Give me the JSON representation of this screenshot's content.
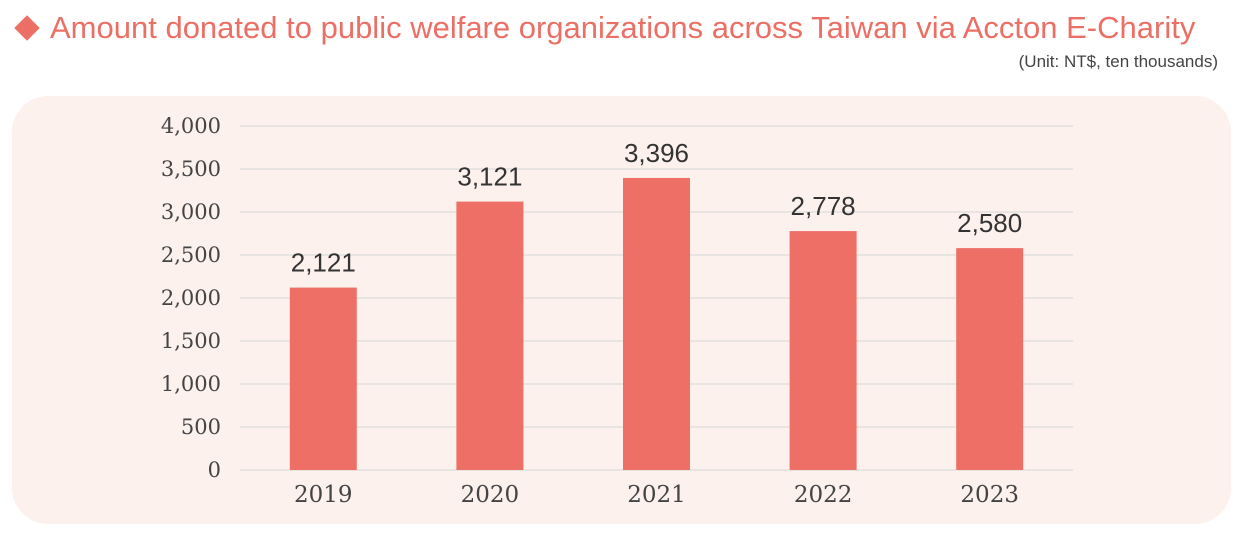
{
  "header": {
    "title": "Amount donated to public welfare organizations across Taiwan via Accton E-Charity",
    "unit_note": "(Unit: NT$, ten thousands)"
  },
  "colors": {
    "accent": "#ec6f66",
    "bar": "#ed6f66",
    "panel": "#fdf1ed",
    "grid": "#dcdcdc"
  },
  "chart_data": {
    "type": "bar",
    "title": "Amount donated to public welfare organizations across Taiwan via Accton E-Charity",
    "categories": [
      "2019",
      "2020",
      "2021",
      "2022",
      "2023"
    ],
    "values": [
      2121,
      3121,
      3396,
      2778,
      2580
    ],
    "value_labels": [
      "2,121",
      "3,121",
      "3,396",
      "2,778",
      "2,580"
    ],
    "yticks": [
      0,
      500,
      1000,
      1500,
      2000,
      2500,
      3000,
      3500,
      4000
    ],
    "ytick_labels": [
      "0",
      "500",
      "1,000",
      "1,500",
      "2,000",
      "2,500",
      "3,000",
      "3,500",
      "4,000"
    ],
    "ylim": [
      0,
      4000
    ],
    "xlabel": "",
    "ylabel": "",
    "grid": true
  }
}
